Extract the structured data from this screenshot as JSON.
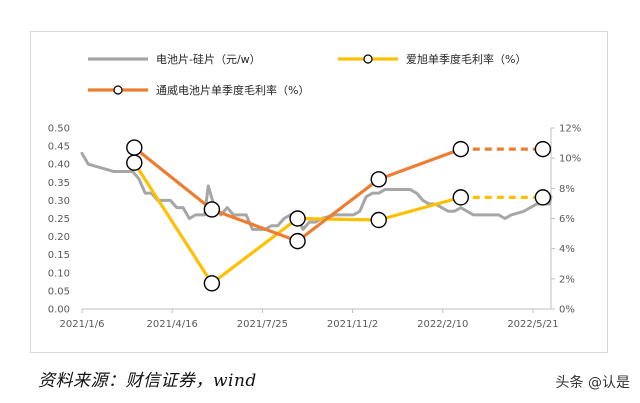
{
  "source_note": "资料来源：财信证券，wind",
  "watermark": "头条 @认是",
  "chart_data": {
    "type": "line",
    "title": "",
    "x_ticks": [
      "2021/1/6",
      "2021/4/16",
      "2021/7/25",
      "2021/11/2",
      "2022/2/10",
      "2022/5/21"
    ],
    "x_tick_dates": [
      "2021-01-06",
      "2021-04-16",
      "2021-07-25",
      "2021-11-02",
      "2022-02-10",
      "2022-05-21"
    ],
    "xlim": [
      "2021-01-06",
      "2022-06-10"
    ],
    "y_left": {
      "ticks": [
        "0.00",
        "0.05",
        "0.10",
        "0.15",
        "0.20",
        "0.25",
        "0.30",
        "0.35",
        "0.40",
        "0.45",
        "0.50"
      ],
      "ylim": [
        0,
        0.5
      ]
    },
    "y_right": {
      "ticks": [
        "0%",
        "2%",
        "4%",
        "6%",
        "8%",
        "10%",
        "12%"
      ],
      "ylim": [
        0,
        12
      ]
    },
    "grid": false,
    "legend_position": "top",
    "series": [
      {
        "name": "电池片-硅片（元/w）",
        "axis": "left",
        "color": "#a6a6a6",
        "style": "solid",
        "points": [
          [
            "2021-01-06",
            0.43
          ],
          [
            "2021-01-13",
            0.4
          ],
          [
            "2021-01-27",
            0.39
          ],
          [
            "2021-02-10",
            0.38
          ],
          [
            "2021-03-03",
            0.38
          ],
          [
            "2021-03-10",
            0.36
          ],
          [
            "2021-03-17",
            0.32
          ],
          [
            "2021-03-24",
            0.32
          ],
          [
            "2021-03-31",
            0.3
          ],
          [
            "2021-04-14",
            0.3
          ],
          [
            "2021-04-21",
            0.28
          ],
          [
            "2021-04-28",
            0.28
          ],
          [
            "2021-05-05",
            0.25
          ],
          [
            "2021-05-12",
            0.26
          ],
          [
            "2021-05-22",
            0.26
          ],
          [
            "2021-05-26",
            0.34
          ],
          [
            "2021-06-02",
            0.28
          ],
          [
            "2021-06-09",
            0.26
          ],
          [
            "2021-06-16",
            0.28
          ],
          [
            "2021-06-23",
            0.26
          ],
          [
            "2021-07-07",
            0.26
          ],
          [
            "2021-07-14",
            0.22
          ],
          [
            "2021-07-28",
            0.22
          ],
          [
            "2021-08-04",
            0.23
          ],
          [
            "2021-08-11",
            0.23
          ],
          [
            "2021-08-18",
            0.25
          ],
          [
            "2021-08-25",
            0.26
          ],
          [
            "2021-09-01",
            0.26
          ],
          [
            "2021-09-08",
            0.22
          ],
          [
            "2021-09-15",
            0.24
          ],
          [
            "2021-09-22",
            0.24
          ],
          [
            "2021-09-29",
            0.25
          ],
          [
            "2021-10-13",
            0.26
          ],
          [
            "2021-10-20",
            0.26
          ],
          [
            "2021-11-03",
            0.26
          ],
          [
            "2021-11-10",
            0.27
          ],
          [
            "2021-11-17",
            0.31
          ],
          [
            "2021-11-24",
            0.32
          ],
          [
            "2021-12-01",
            0.32
          ],
          [
            "2021-12-08",
            0.33
          ],
          [
            "2021-12-22",
            0.33
          ],
          [
            "2022-01-05",
            0.33
          ],
          [
            "2022-01-12",
            0.32
          ],
          [
            "2022-01-19",
            0.3
          ],
          [
            "2022-01-26",
            0.29
          ],
          [
            "2022-02-02",
            0.29
          ],
          [
            "2022-02-09",
            0.28
          ],
          [
            "2022-02-16",
            0.27
          ],
          [
            "2022-02-23",
            0.27
          ],
          [
            "2022-03-02",
            0.28
          ],
          [
            "2022-03-09",
            0.27
          ],
          [
            "2022-03-16",
            0.26
          ],
          [
            "2022-03-30",
            0.26
          ],
          [
            "2022-04-13",
            0.26
          ],
          [
            "2022-04-20",
            0.25
          ],
          [
            "2022-04-27",
            0.26
          ],
          [
            "2022-05-11",
            0.27
          ],
          [
            "2022-05-25",
            0.29
          ],
          [
            "2022-06-01",
            0.29
          ],
          [
            "2022-06-08",
            0.29
          ],
          [
            "2022-06-10",
            0.31
          ]
        ]
      },
      {
        "name": "爱旭单季度毛利率（%）",
        "axis": "right",
        "color": "#ffc000",
        "style": "solid",
        "dashed_from_index": 4,
        "points": [
          [
            "2021-03-05",
            9.7
          ],
          [
            "2021-05-30",
            1.7
          ],
          [
            "2021-09-02",
            6.0
          ],
          [
            "2021-12-01",
            5.9
          ],
          [
            "2022-03-02",
            7.4
          ],
          [
            "2022-06-01",
            7.4
          ]
        ]
      },
      {
        "name": "通威电池片单季度毛利率（%）",
        "axis": "right",
        "color": "#ed7d31",
        "style": "solid",
        "dashed_from_index": 4,
        "points": [
          [
            "2021-03-05",
            10.7
          ],
          [
            "2021-05-30",
            6.6
          ],
          [
            "2021-09-02",
            4.5
          ],
          [
            "2021-12-01",
            8.6
          ],
          [
            "2022-03-02",
            10.6
          ],
          [
            "2022-06-01",
            10.6
          ]
        ]
      }
    ]
  }
}
